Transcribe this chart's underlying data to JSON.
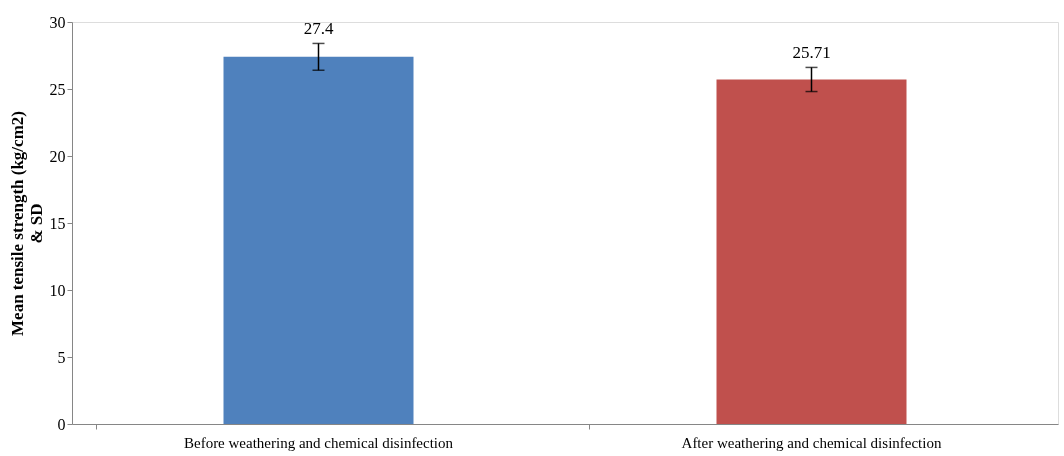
{
  "chart_data": {
    "type": "bar",
    "ylabel": "Mean tensile strength (kg/cm2) & SD",
    "categories": [
      "Before weathering and chemical disinfection",
      "After weathering and chemical disinfection"
    ],
    "values": [
      27.4,
      25.71
    ],
    "colors": [
      "#4f81bd",
      "#c0504d"
    ],
    "errors": [
      1.0,
      0.9
    ],
    "data_labels": true,
    "ylim": [
      0,
      30
    ],
    "yticks": [
      0,
      5,
      10,
      15,
      20,
      25,
      30
    ],
    "grid": false
  }
}
